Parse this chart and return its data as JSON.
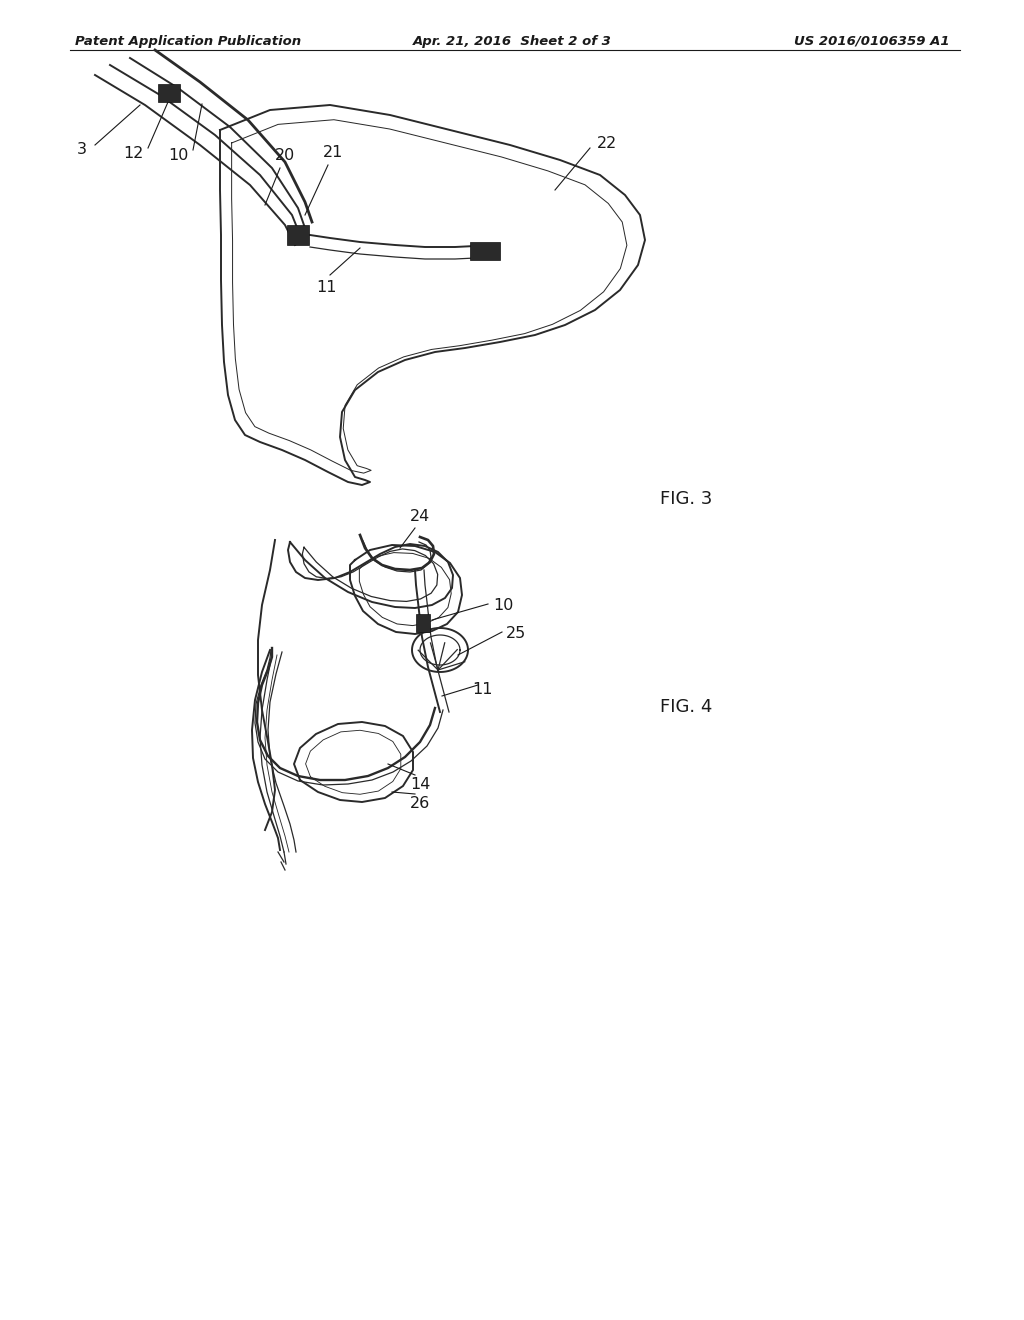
{
  "bg_color": "#ffffff",
  "line_color": "#2a2a2a",
  "dark_color": "#1a1a1a",
  "header_left": "Patent Application Publication",
  "header_mid": "Apr. 21, 2016  Sheet 2 of 3",
  "header_right": "US 2016/0106359 A1",
  "fig3_label": "FIG. 3",
  "fig4_label": "FIG. 4"
}
